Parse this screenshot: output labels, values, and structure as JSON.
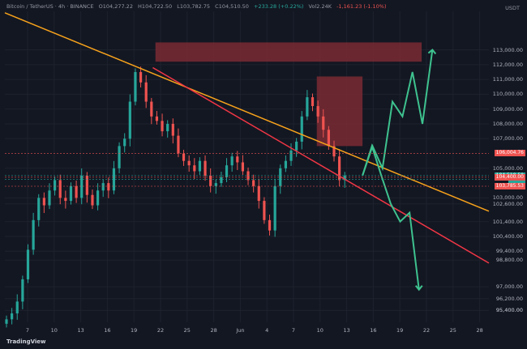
{
  "header": {
    "symbol": "Bitcoin / TetherUS · 4h · BINANCE",
    "open": "O104,277.22",
    "high": "H104,722.50",
    "low": "L103,782.75",
    "close": "C104,510.50",
    "change": "+233.28 (+0.22%)",
    "volume": "Vol2.24K",
    "indicator": "-1,161.23 (-1.10%)"
  },
  "currency": "USDT",
  "brand": "TradingView",
  "colors": {
    "bg": "#131722",
    "up": "#26a69a",
    "down": "#ef5350",
    "orange_line": "#f7a21b",
    "red_line": "#f23645",
    "zone": "#7a2a33",
    "arrow": "#3ec28f"
  },
  "chart_data": {
    "type": "candlestick",
    "timeframe": "4h",
    "y_ticks": [
      110000,
      109000,
      108000,
      107000,
      105000,
      103000,
      101400,
      100400,
      99400,
      98800,
      97000,
      96200,
      95400
    ],
    "y_tick_labels": [
      "110,000.00",
      "109,000.00",
      "108,000.00",
      "107,000.00",
      "105,000.00",
      "103,000.00",
      "101,400.00",
      "100,400.00",
      "99,400.00",
      "98,800.00",
      "97,000.00",
      "96,200.00",
      "95,400.00"
    ],
    "y_ticks_extra": [
      113000,
      112000,
      111000,
      102600,
      95400
    ],
    "y_ticks_extra_labels": [
      "113,000.00",
      "112,000.00",
      "111,000.00",
      "102,600.00",
      "95,400.00"
    ],
    "x_tick_labels": [
      "7",
      "10",
      "13",
      "16",
      "19",
      "22",
      "25",
      "28",
      "Jun",
      "4",
      "7",
      "10",
      "13",
      "16",
      "19",
      "22",
      "25",
      "28"
    ],
    "ohlc_4h_closes_approx": [
      94800,
      95200,
      96000,
      97500,
      99500,
      101500,
      103000,
      102500,
      103500,
      104200,
      103000,
      102800,
      103800,
      103000,
      104500,
      103200,
      102500,
      103500,
      104000,
      103500,
      105000,
      106500,
      107000,
      109500,
      111500,
      110800,
      109500,
      108500,
      108200,
      107500,
      108000,
      107200,
      106000,
      105500,
      105200,
      104800,
      105500,
      104500,
      103800,
      104000,
      104400,
      105200,
      105800,
      105400,
      104800,
      104200,
      103800,
      102800,
      101500,
      100800,
      103800,
      105000,
      105500,
      106200,
      106800,
      108500,
      109800,
      109200,
      108500,
      107600,
      106500,
      105800,
      104200,
      104510.5
    ],
    "price_badges": [
      {
        "label": "106,004.76",
        "value": 106004.76,
        "color": "#ef5350"
      },
      {
        "label": "104,510.50",
        "value": 104510.5,
        "color": "#26a69a"
      },
      {
        "label": "03:53",
        "value": 104250,
        "color": "#26a69a"
      },
      {
        "label": "104,400.00",
        "value": 104400,
        "color": "#ef5350"
      },
      {
        "label": "103,785.53",
        "value": 103785.53,
        "color": "#ef5350"
      }
    ],
    "trendlines": [
      {
        "name": "orange",
        "from": {
          "bar": 0,
          "price": 115500
        },
        "to": {
          "bar": 180,
          "price": 102100
        }
      },
      {
        "name": "red",
        "from": {
          "bar": 55,
          "price": 111800
        },
        "to": {
          "bar": 180,
          "price": 98600
        }
      }
    ],
    "zones": [
      {
        "price_top": 113500,
        "price_bottom": 112200,
        "bar_from": 56,
        "bar_to": 155
      },
      {
        "price_top": 111200,
        "price_bottom": 106500,
        "bar_from": 116,
        "bar_to": 133
      }
    ],
    "projection_up": [
      104510,
      106500,
      105000,
      109500,
      108500,
      111500,
      108000,
      113000
    ],
    "projection_down": [
      104510,
      106500,
      104500,
      102600,
      101400,
      102000,
      96800
    ]
  }
}
